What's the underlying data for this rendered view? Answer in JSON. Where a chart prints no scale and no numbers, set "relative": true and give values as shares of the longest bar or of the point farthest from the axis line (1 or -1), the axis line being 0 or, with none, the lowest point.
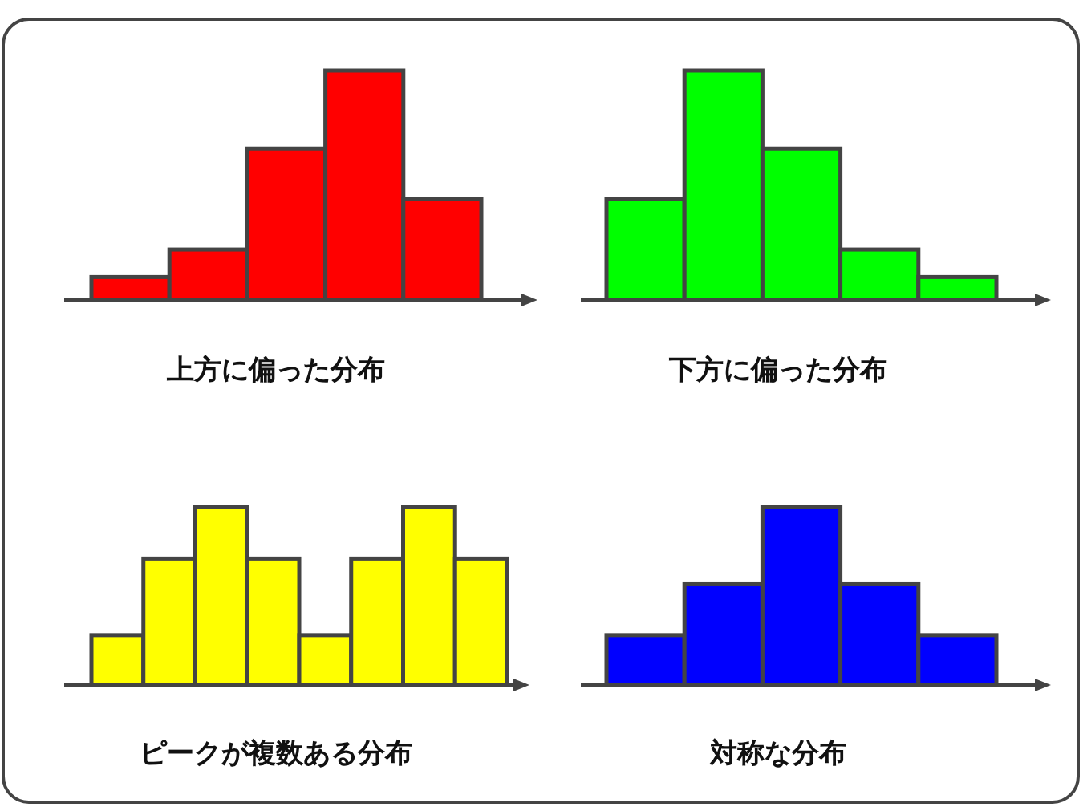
{
  "chart_data": [
    {
      "type": "bar",
      "title": "上方に偏った分布",
      "relative": true,
      "categories": [
        null,
        null,
        null,
        null,
        null
      ],
      "values": [
        0.1,
        0.22,
        0.66,
        1,
        0.44
      ],
      "color": "#ff0000"
    },
    {
      "type": "bar",
      "title": "下方に偏った分布",
      "relative": true,
      "categories": [
        null,
        null,
        null,
        null,
        null
      ],
      "values": [
        0.44,
        1,
        0.66,
        0.22,
        0.1
      ],
      "color": "#00ff00"
    },
    {
      "type": "bar",
      "title": "ピークが複数ある分布",
      "relative": true,
      "categories": [
        null,
        null,
        null,
        null,
        null,
        null,
        null,
        null
      ],
      "values": [
        0.28,
        0.71,
        1,
        0.71,
        0.28,
        0.71,
        1,
        0.71
      ],
      "color": "#ffff00"
    },
    {
      "type": "bar",
      "title": "対称な分布",
      "relative": true,
      "categories": [
        null,
        null,
        null,
        null,
        null
      ],
      "values": [
        0.28,
        0.57,
        1,
        0.57,
        0.28
      ],
      "color": "#0000ff"
    }
  ]
}
